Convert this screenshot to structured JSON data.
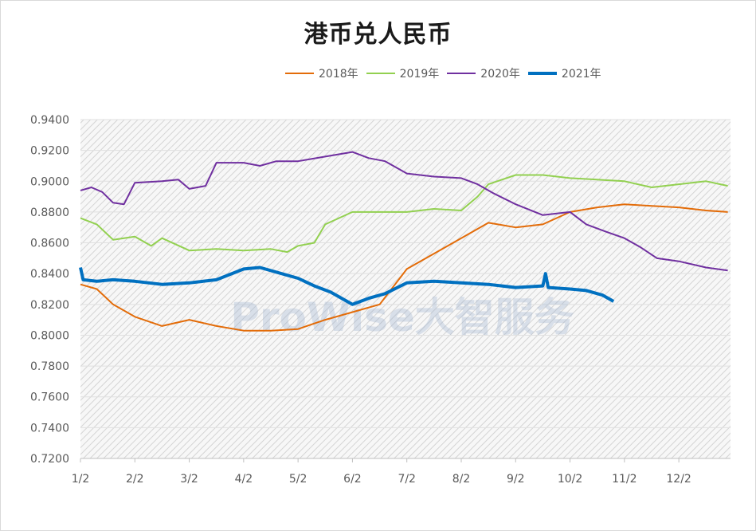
{
  "chart_data": {
    "type": "line",
    "title": "港币兑人民币",
    "xlabel": "",
    "ylabel": "",
    "ylim": [
      0.72,
      0.94
    ],
    "y_ticks": [
      "0.9400",
      "0.9200",
      "0.9000",
      "0.8800",
      "0.8600",
      "0.8400",
      "0.8200",
      "0.8000",
      "0.7800",
      "0.7600",
      "0.7400",
      "0.7200"
    ],
    "x_ticks": [
      "1/2",
      "2/2",
      "3/2",
      "4/2",
      "5/2",
      "6/2",
      "7/2",
      "8/2",
      "9/2",
      "10/2",
      "11/2",
      "12/2"
    ],
    "grid": true,
    "legend_position": "top-right",
    "watermark": "ProWise大智服务",
    "series": [
      {
        "name": "2018年",
        "color": "#e36c09",
        "x": [
          1.0,
          1.3,
          1.6,
          2.0,
          2.5,
          3.0,
          3.5,
          4.0,
          4.5,
          5.0,
          5.5,
          6.0,
          6.5,
          7.0,
          7.5,
          8.0,
          8.5,
          9.0,
          9.5,
          10.0,
          10.5,
          11.0,
          11.5,
          12.0,
          12.5,
          12.9
        ],
        "values": [
          0.833,
          0.83,
          0.82,
          0.812,
          0.806,
          0.81,
          0.806,
          0.803,
          0.803,
          0.804,
          0.81,
          0.815,
          0.82,
          0.843,
          0.853,
          0.863,
          0.873,
          0.87,
          0.872,
          0.88,
          0.883,
          0.885,
          0.884,
          0.883,
          0.881,
          0.88
        ]
      },
      {
        "name": "2019年",
        "color": "#92d050",
        "x": [
          1.0,
          1.3,
          1.6,
          2.0,
          2.3,
          2.5,
          3.0,
          3.5,
          4.0,
          4.5,
          4.8,
          5.0,
          5.3,
          5.5,
          6.0,
          6.5,
          7.0,
          7.5,
          8.0,
          8.3,
          8.5,
          9.0,
          9.5,
          10.0,
          10.5,
          11.0,
          11.5,
          12.0,
          12.5,
          12.9
        ],
        "values": [
          0.876,
          0.872,
          0.862,
          0.864,
          0.858,
          0.863,
          0.855,
          0.856,
          0.855,
          0.856,
          0.854,
          0.858,
          0.86,
          0.872,
          0.88,
          0.88,
          0.88,
          0.882,
          0.881,
          0.89,
          0.898,
          0.904,
          0.904,
          0.902,
          0.901,
          0.9,
          0.896,
          0.898,
          0.9,
          0.897
        ]
      },
      {
        "name": "2020年",
        "color": "#7030a0",
        "x": [
          1.0,
          1.2,
          1.4,
          1.6,
          1.8,
          2.0,
          2.5,
          2.8,
          3.0,
          3.3,
          3.5,
          4.0,
          4.3,
          4.6,
          5.0,
          5.5,
          6.0,
          6.3,
          6.6,
          7.0,
          7.5,
          8.0,
          8.3,
          8.6,
          9.0,
          9.5,
          10.0,
          10.3,
          10.6,
          11.0,
          11.3,
          11.6,
          12.0,
          12.5,
          12.9
        ],
        "values": [
          0.894,
          0.896,
          0.893,
          0.886,
          0.885,
          0.899,
          0.9,
          0.901,
          0.895,
          0.897,
          0.912,
          0.912,
          0.91,
          0.913,
          0.913,
          0.916,
          0.919,
          0.915,
          0.913,
          0.905,
          0.903,
          0.902,
          0.898,
          0.892,
          0.885,
          0.878,
          0.88,
          0.872,
          0.868,
          0.863,
          0.857,
          0.85,
          0.848,
          0.844,
          0.842
        ]
      },
      {
        "name": "2021年",
        "color": "#0070c0",
        "x": [
          1.0,
          1.05,
          1.3,
          1.6,
          2.0,
          2.5,
          3.0,
          3.5,
          4.0,
          4.3,
          4.6,
          5.0,
          5.3,
          5.6,
          6.0,
          6.3,
          6.6,
          7.0,
          7.5,
          8.0,
          8.5,
          9.0,
          9.5,
          9.55,
          9.6,
          10.0,
          10.3,
          10.6,
          10.8
        ],
        "values": [
          0.844,
          0.836,
          0.835,
          0.836,
          0.835,
          0.833,
          0.834,
          0.836,
          0.843,
          0.844,
          0.841,
          0.837,
          0.832,
          0.828,
          0.82,
          0.824,
          0.827,
          0.834,
          0.835,
          0.834,
          0.833,
          0.831,
          0.832,
          0.84,
          0.831,
          0.83,
          0.829,
          0.826,
          0.822
        ]
      }
    ]
  }
}
